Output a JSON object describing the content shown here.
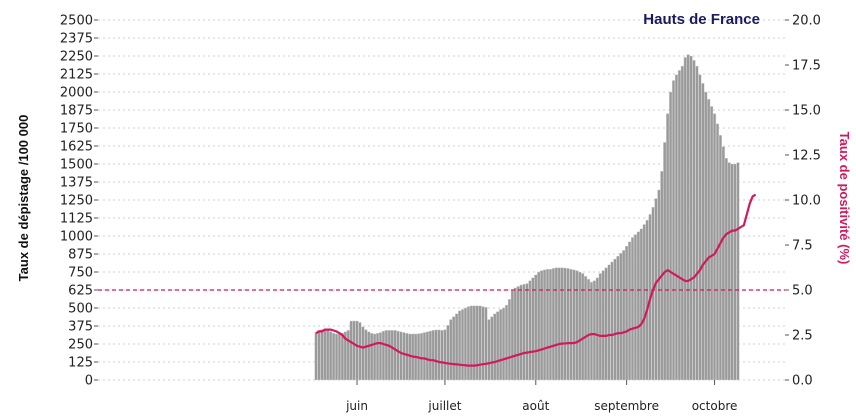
{
  "chart_data": {
    "type": "bar",
    "title": "Hauts de France",
    "ylabel_left": "Taux de dépistage /100 000",
    "ylabel_right": "Taux de positivité (%)",
    "left_axis": {
      "ylim": [
        0,
        2500
      ],
      "ticks": [
        "0",
        "125",
        "250",
        "375",
        "500",
        "625",
        "750",
        "875",
        "1000",
        "1125",
        "1250",
        "1375",
        "1500",
        "1625",
        "1750",
        "1875",
        "2000",
        "2125",
        "2250",
        "2375",
        "2500"
      ]
    },
    "right_axis": {
      "ylim": [
        0,
        20
      ],
      "ticks": [
        "0.0",
        "2.5",
        "5.0",
        "7.5",
        "10.0",
        "12.5",
        "15.0",
        "17.5",
        "20.0"
      ]
    },
    "x_ticks": [
      {
        "label": "juin",
        "day": 14
      },
      {
        "label": "juillet",
        "day": 44
      },
      {
        "label": "août",
        "day": 75
      },
      {
        "label": "septembre",
        "day": 106
      },
      {
        "label": "octobre",
        "day": 136
      }
    ],
    "reference_line_right": 5.0,
    "colors": {
      "bars": "#9a9a9a",
      "bar_edge": "#d9d9d9",
      "line": "#d1195e",
      "title": "#1a1a5e",
      "right_label": "#d1195e",
      "grid": "#cfcfcf"
    },
    "series": [
      {
        "name": "Taux de dépistage /100 000",
        "type": "bar",
        "axis": "left",
        "values": [
          330,
          345,
          350,
          350,
          345,
          335,
          325,
          320,
          320,
          325,
          335,
          345,
          410,
          410,
          410,
          400,
          370,
          350,
          335,
          325,
          320,
          325,
          330,
          340,
          345,
          345,
          345,
          345,
          340,
          335,
          330,
          325,
          320,
          320,
          320,
          322,
          325,
          330,
          335,
          340,
          345,
          348,
          348,
          345,
          350,
          380,
          420,
          440,
          460,
          480,
          490,
          500,
          510,
          515,
          515,
          515,
          515,
          510,
          505,
          420,
          440,
          460,
          475,
          490,
          500,
          520,
          560,
          620,
          640,
          650,
          660,
          665,
          670,
          690,
          710,
          730,
          750,
          760,
          765,
          770,
          770,
          775,
          780,
          780,
          780,
          778,
          775,
          770,
          765,
          760,
          750,
          740,
          720,
          700,
          680,
          690,
          710,
          740,
          760,
          780,
          800,
          820,
          840,
          860,
          880,
          900,
          930,
          960,
          990,
          1010,
          1030,
          1050,
          1080,
          1110,
          1150,
          1200,
          1260,
          1320,
          1450,
          1650,
          1850,
          2000,
          2080,
          2120,
          2150,
          2180,
          2240,
          2260,
          2250,
          2220,
          2180,
          2120,
          2060,
          2000,
          1950,
          1900,
          1850,
          1780,
          1700,
          1620,
          1540,
          1510,
          1500,
          1500,
          1510
        ]
      },
      {
        "name": "Taux de positivité (%)",
        "type": "line",
        "axis": "right",
        "values": [
          2.6,
          2.7,
          2.7,
          2.8,
          2.8,
          2.8,
          2.75,
          2.7,
          2.6,
          2.5,
          2.3,
          2.2,
          2.1,
          2.0,
          1.9,
          1.85,
          1.8,
          1.85,
          1.9,
          1.95,
          2.0,
          2.05,
          2.05,
          2.0,
          1.95,
          1.9,
          1.8,
          1.7,
          1.6,
          1.5,
          1.45,
          1.4,
          1.35,
          1.3,
          1.28,
          1.25,
          1.2,
          1.2,
          1.15,
          1.1,
          1.1,
          1.05,
          1.0,
          0.98,
          0.95,
          0.92,
          0.9,
          0.88,
          0.87,
          0.85,
          0.83,
          0.82,
          0.8,
          0.8,
          0.8,
          0.82,
          0.85,
          0.88,
          0.9,
          0.93,
          0.97,
          1.0,
          1.05,
          1.1,
          1.15,
          1.2,
          1.25,
          1.3,
          1.35,
          1.4,
          1.45,
          1.5,
          1.52,
          1.55,
          1.58,
          1.6,
          1.65,
          1.7,
          1.75,
          1.8,
          1.85,
          1.9,
          1.95,
          2.0,
          2.02,
          2.03,
          2.05,
          2.05,
          2.05,
          2.1,
          2.2,
          2.3,
          2.4,
          2.5,
          2.55,
          2.55,
          2.5,
          2.45,
          2.45,
          2.45,
          2.5,
          2.5,
          2.55,
          2.6,
          2.6,
          2.65,
          2.7,
          2.8,
          2.85,
          2.9,
          2.95,
          3.1,
          3.4,
          3.9,
          4.5,
          5.0,
          5.4,
          5.6,
          5.8,
          6.0,
          6.1,
          6.0,
          5.9,
          5.8,
          5.7,
          5.6,
          5.5,
          5.5,
          5.6,
          5.7,
          5.9,
          6.1,
          6.4,
          6.6,
          6.8,
          6.9,
          7.0,
          7.3,
          7.6,
          7.9,
          8.1,
          8.2,
          8.3,
          8.3,
          8.4,
          8.5,
          8.6,
          9.2,
          9.8,
          10.2,
          10.3
        ]
      }
    ]
  }
}
